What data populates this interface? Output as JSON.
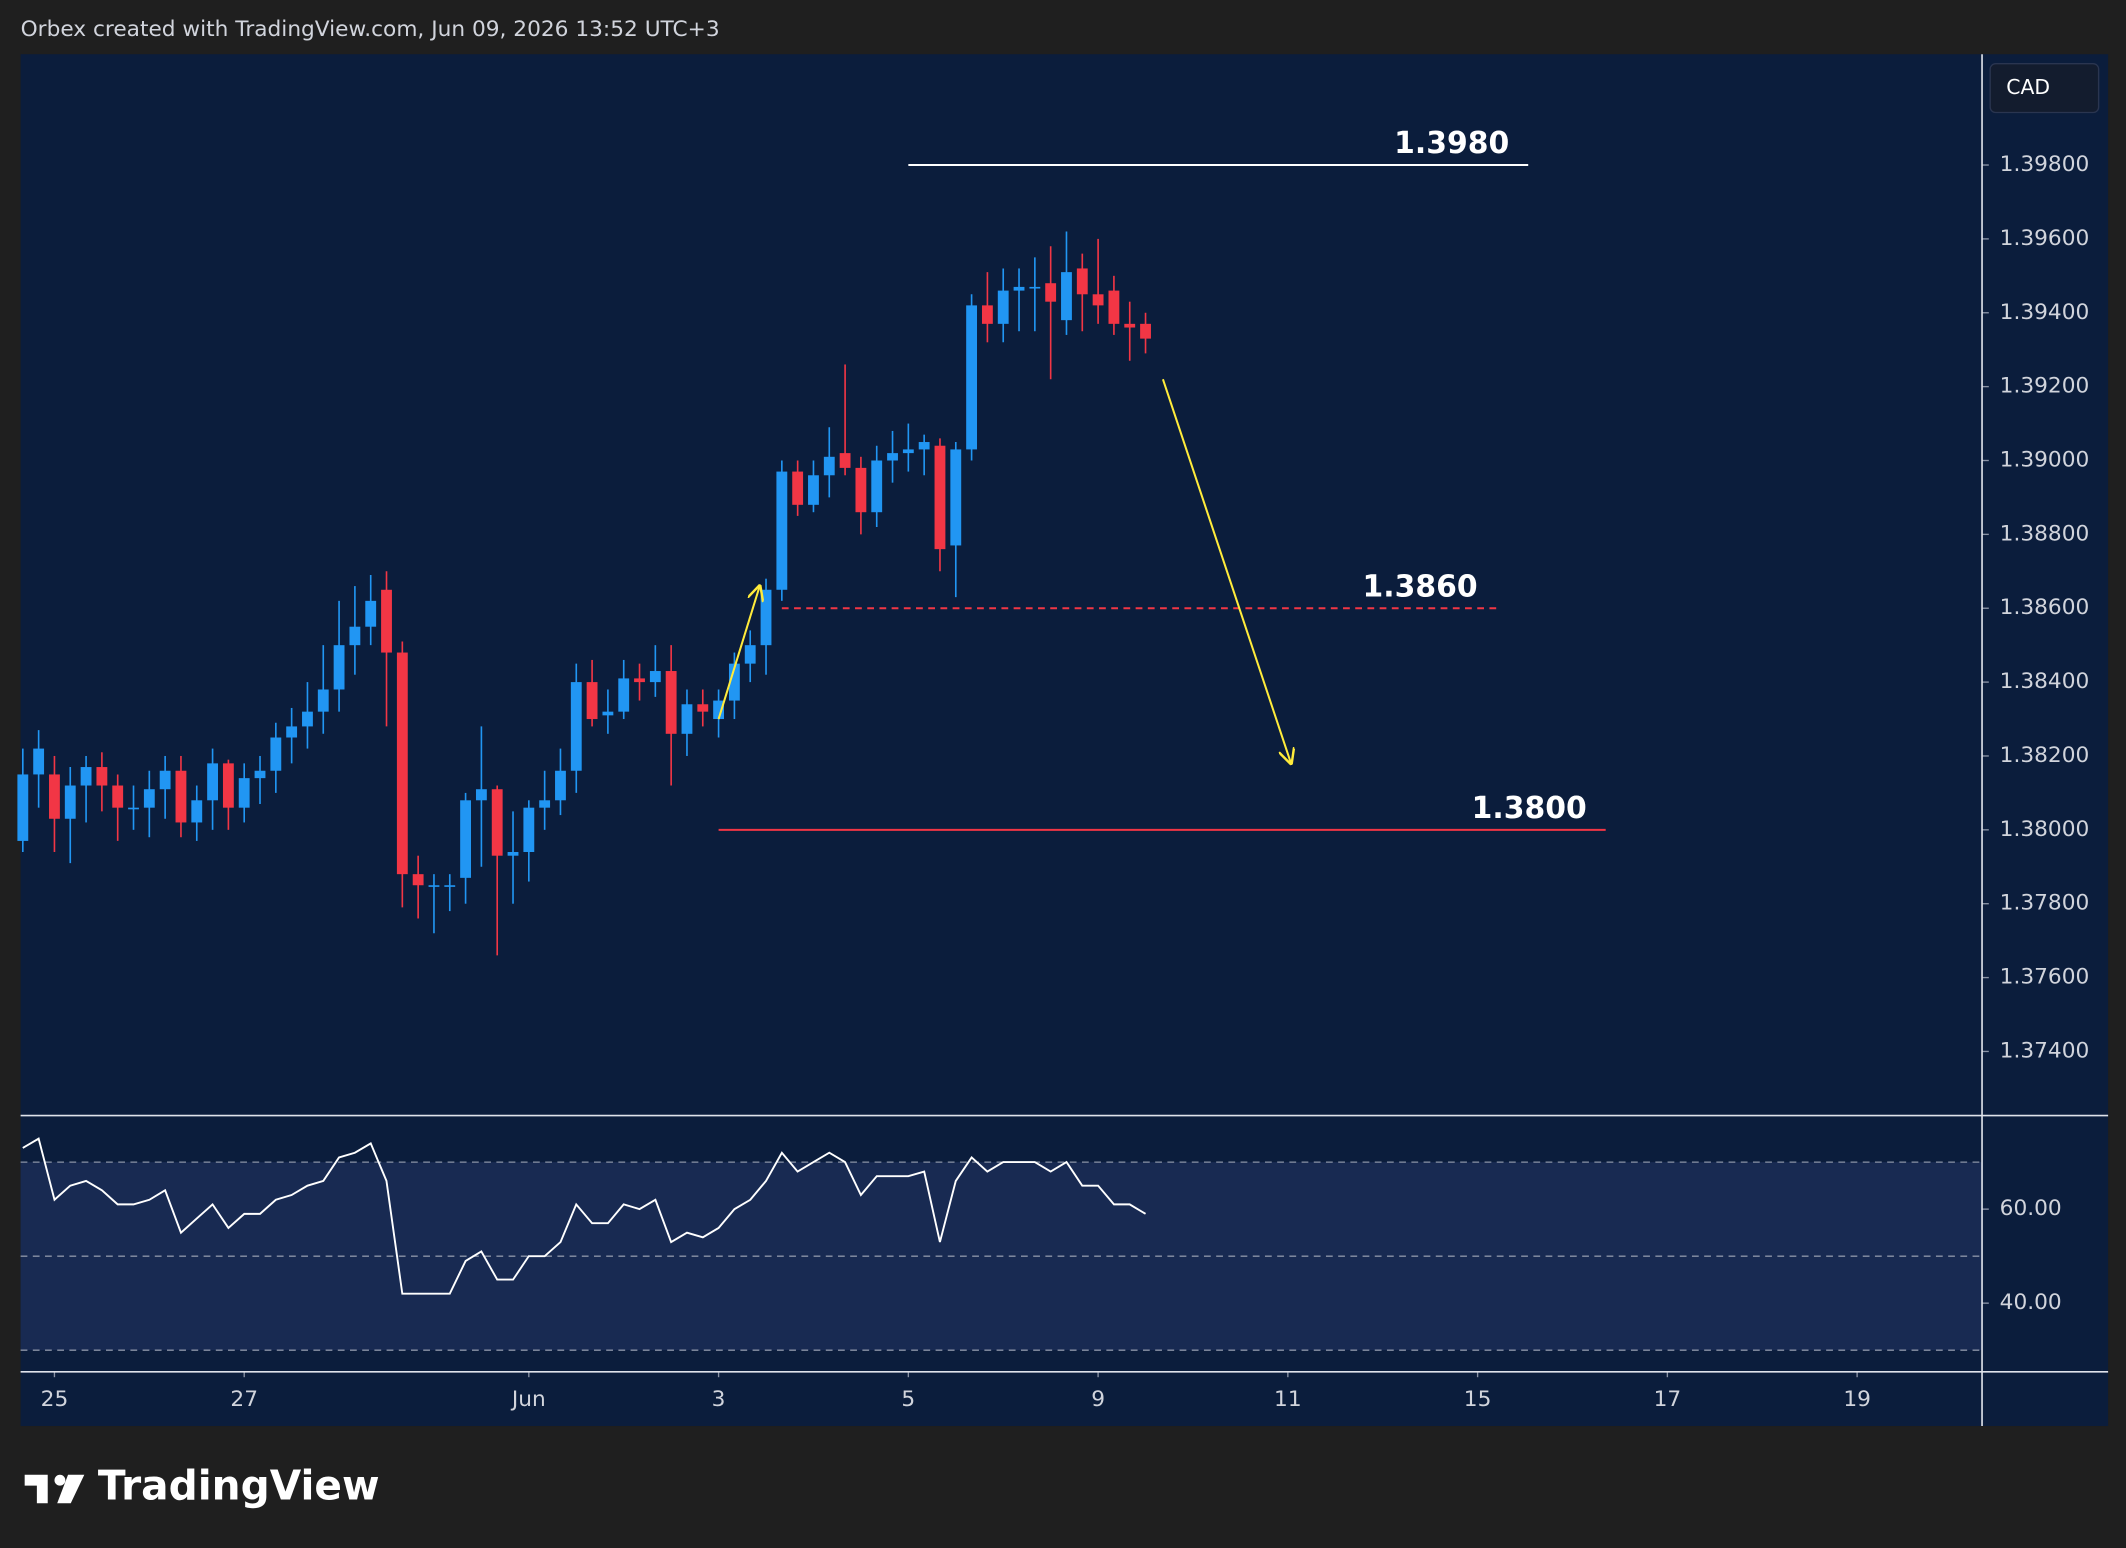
{
  "header": {
    "title": "Orbex created with TradingView.com, Jun 09, 2026 13:52 UTC+3"
  },
  "footer": {
    "brand": "TradingView"
  },
  "chart_data": {
    "type": "candlestick",
    "currency": "CAD",
    "up_color": "#2196f3",
    "down_color": "#f23645",
    "x": [
      -2,
      -1,
      0,
      1,
      2,
      3,
      4,
      5,
      6,
      7,
      8,
      9,
      10,
      11,
      12,
      13,
      14,
      15,
      16,
      17,
      18,
      19,
      20,
      21,
      22,
      23,
      24,
      25,
      26,
      27,
      28,
      29,
      30,
      31,
      32,
      33,
      34,
      35,
      36,
      37,
      38,
      39,
      40,
      41,
      42,
      43,
      44,
      45,
      46,
      47,
      48,
      49,
      50,
      51,
      52,
      53,
      54,
      55,
      56,
      57,
      58,
      59,
      60,
      61,
      62,
      63,
      64,
      65,
      66,
      67,
      68,
      69
    ],
    "open": [
      1.3797,
      1.3815,
      1.3815,
      1.3803,
      1.3812,
      1.3817,
      1.3812,
      1.3806,
      1.3806,
      1.3811,
      1.3816,
      1.3802,
      1.3808,
      1.3818,
      1.3806,
      1.3814,
      1.3816,
      1.3825,
      1.3828,
      1.3832,
      1.3838,
      1.385,
      1.3855,
      1.3865,
      1.3848,
      1.3788,
      1.3785,
      1.3785,
      1.3787,
      1.3808,
      1.3811,
      1.3793,
      1.3794,
      1.3806,
      1.3808,
      1.3816,
      1.384,
      1.3831,
      1.3832,
      1.3841,
      1.384,
      1.3843,
      1.3826,
      1.3834,
      1.383,
      1.3835,
      1.3845,
      1.385,
      1.3865,
      1.3897,
      1.3888,
      1.3896,
      1.3902,
      1.3898,
      1.3886,
      1.39,
      1.3902,
      1.3903,
      1.3904,
      1.3877,
      1.3903,
      1.3942,
      1.3937,
      1.3946,
      1.3947,
      1.3948,
      1.3938,
      1.3952,
      1.3945,
      1.3946,
      1.3937,
      1.3937
    ],
    "high": [
      1.3822,
      1.3827,
      1.382,
      1.3817,
      1.382,
      1.3821,
      1.3815,
      1.3812,
      1.3816,
      1.382,
      1.382,
      1.3812,
      1.3822,
      1.3819,
      1.3818,
      1.382,
      1.3829,
      1.3833,
      1.384,
      1.385,
      1.3862,
      1.3866,
      1.3869,
      1.387,
      1.3851,
      1.3793,
      1.3788,
      1.3788,
      1.381,
      1.3828,
      1.3812,
      1.3805,
      1.3808,
      1.3816,
      1.3822,
      1.3845,
      1.3846,
      1.3838,
      1.3846,
      1.3845,
      1.385,
      1.385,
      1.3838,
      1.3838,
      1.3838,
      1.3848,
      1.3854,
      1.3868,
      1.39,
      1.39,
      1.39,
      1.3909,
      1.3926,
      1.3901,
      1.3904,
      1.3908,
      1.391,
      1.3907,
      1.3906,
      1.3905,
      1.3945,
      1.3951,
      1.3952,
      1.3952,
      1.3955,
      1.3958,
      1.3962,
      1.3956,
      1.396,
      1.395,
      1.3943,
      1.394
    ],
    "low": [
      1.3794,
      1.3806,
      1.3794,
      1.3791,
      1.3802,
      1.3805,
      1.3797,
      1.38,
      1.3798,
      1.3803,
      1.3798,
      1.3797,
      1.38,
      1.38,
      1.3802,
      1.3807,
      1.381,
      1.3818,
      1.3822,
      1.3826,
      1.3832,
      1.3842,
      1.385,
      1.3828,
      1.3779,
      1.3776,
      1.3772,
      1.3778,
      1.378,
      1.379,
      1.3766,
      1.378,
      1.3786,
      1.38,
      1.3804,
      1.381,
      1.3828,
      1.3826,
      1.383,
      1.3835,
      1.3836,
      1.3812,
      1.382,
      1.3828,
      1.3825,
      1.383,
      1.384,
      1.3842,
      1.3862,
      1.3885,
      1.3886,
      1.389,
      1.3896,
      1.388,
      1.3882,
      1.3894,
      1.3897,
      1.3896,
      1.387,
      1.3863,
      1.39,
      1.3932,
      1.3932,
      1.3935,
      1.3935,
      1.3922,
      1.3934,
      1.3935,
      1.3937,
      1.3934,
      1.3927,
      1.3929
    ],
    "close": [
      1.3815,
      1.3822,
      1.3803,
      1.3812,
      1.3817,
      1.3812,
      1.3806,
      1.3806,
      1.3811,
      1.3816,
      1.3802,
      1.3808,
      1.3818,
      1.3806,
      1.3814,
      1.3816,
      1.3825,
      1.3828,
      1.3832,
      1.3838,
      1.385,
      1.3855,
      1.3862,
      1.3848,
      1.3788,
      1.3785,
      1.3785,
      1.3785,
      1.3808,
      1.3811,
      1.3793,
      1.3794,
      1.3806,
      1.3808,
      1.3816,
      1.384,
      1.383,
      1.3832,
      1.3841,
      1.384,
      1.3843,
      1.3826,
      1.3834,
      1.3832,
      1.3835,
      1.3845,
      1.385,
      1.3865,
      1.3897,
      1.3888,
      1.3896,
      1.3901,
      1.3898,
      1.3886,
      1.39,
      1.3902,
      1.3903,
      1.3905,
      1.3876,
      1.3903,
      1.3942,
      1.3937,
      1.3946,
      1.3947,
      1.3947,
      1.3943,
      1.3951,
      1.3945,
      1.3942,
      1.3937,
      1.3936,
      1.3933
    ],
    "xlim": [
      -2.14,
      121.9
    ],
    "xticks": [
      {
        "value": 0,
        "label": "25"
      },
      {
        "value": 12,
        "label": "27"
      },
      {
        "value": 30,
        "label": "Jun"
      },
      {
        "value": 42,
        "label": "3"
      },
      {
        "value": 54,
        "label": "5"
      },
      {
        "value": 66,
        "label": "9"
      },
      {
        "value": 78,
        "label": "11"
      },
      {
        "value": 90,
        "label": "15"
      },
      {
        "value": 102,
        "label": "17"
      },
      {
        "value": 114,
        "label": "19"
      }
    ],
    "ylim": [
      1.3723,
      1.401
    ],
    "yticks": [
      {
        "value": 1.374,
        "label": "1.37400"
      },
      {
        "value": 1.376,
        "label": "1.37600"
      },
      {
        "value": 1.378,
        "label": "1.37800"
      },
      {
        "value": 1.38,
        "label": "1.38000"
      },
      {
        "value": 1.382,
        "label": "1.38200"
      },
      {
        "value": 1.384,
        "label": "1.38400"
      },
      {
        "value": 1.386,
        "label": "1.38600"
      },
      {
        "value": 1.388,
        "label": "1.38800"
      },
      {
        "value": 1.39,
        "label": "1.39000"
      },
      {
        "value": 1.392,
        "label": "1.39200"
      },
      {
        "value": 1.394,
        "label": "1.39400"
      },
      {
        "value": 1.396,
        "label": "1.39600"
      },
      {
        "value": 1.398,
        "label": "1.39800"
      }
    ],
    "levels": [
      {
        "value": 1.398,
        "label": "1.3980",
        "x": [
          54,
          93.2
        ],
        "color": "#ffffff",
        "style": "solid"
      },
      {
        "value": 1.386,
        "label": "1.3860",
        "x": [
          46,
          91.2
        ],
        "color": "#f23645",
        "style": "dashed"
      },
      {
        "value": 1.38,
        "label": "1.3800",
        "x": [
          42,
          98.1
        ],
        "color": "#f23645",
        "style": "solid"
      }
    ],
    "arrows": [
      {
        "x": [
          70.1,
          78.2
        ],
        "y": [
          1.3922,
          1.3818
        ],
        "color": "#ffeb3b"
      },
      {
        "x": [
          42,
          44.6
        ],
        "y": [
          1.383,
          1.3866
        ],
        "color": "#ffeb3b"
      }
    ],
    "rsi": {
      "color": "#ffffff",
      "values": [
        73,
        75,
        62,
        65,
        66,
        64,
        61,
        61,
        62,
        64,
        55,
        58,
        61,
        56,
        59,
        59,
        62,
        63,
        65,
        66,
        71,
        72,
        74,
        66,
        42,
        42,
        42,
        42,
        49,
        51,
        45,
        45,
        50,
        50,
        53,
        61,
        57,
        57,
        61,
        60,
        62,
        53,
        55,
        54,
        56,
        60,
        62,
        66,
        72,
        68,
        70,
        72,
        70,
        63,
        67,
        67,
        67,
        68,
        53,
        66,
        71,
        68,
        70,
        70,
        70,
        68,
        70,
        65,
        65,
        61,
        61,
        59
      ],
      "ylim": [
        25.4,
        79.9
      ],
      "yticks": [
        {
          "value": 40,
          "label": "40.00"
        },
        {
          "value": 60,
          "label": "60.00"
        }
      ],
      "bands": [
        30,
        50,
        70
      ]
    }
  }
}
